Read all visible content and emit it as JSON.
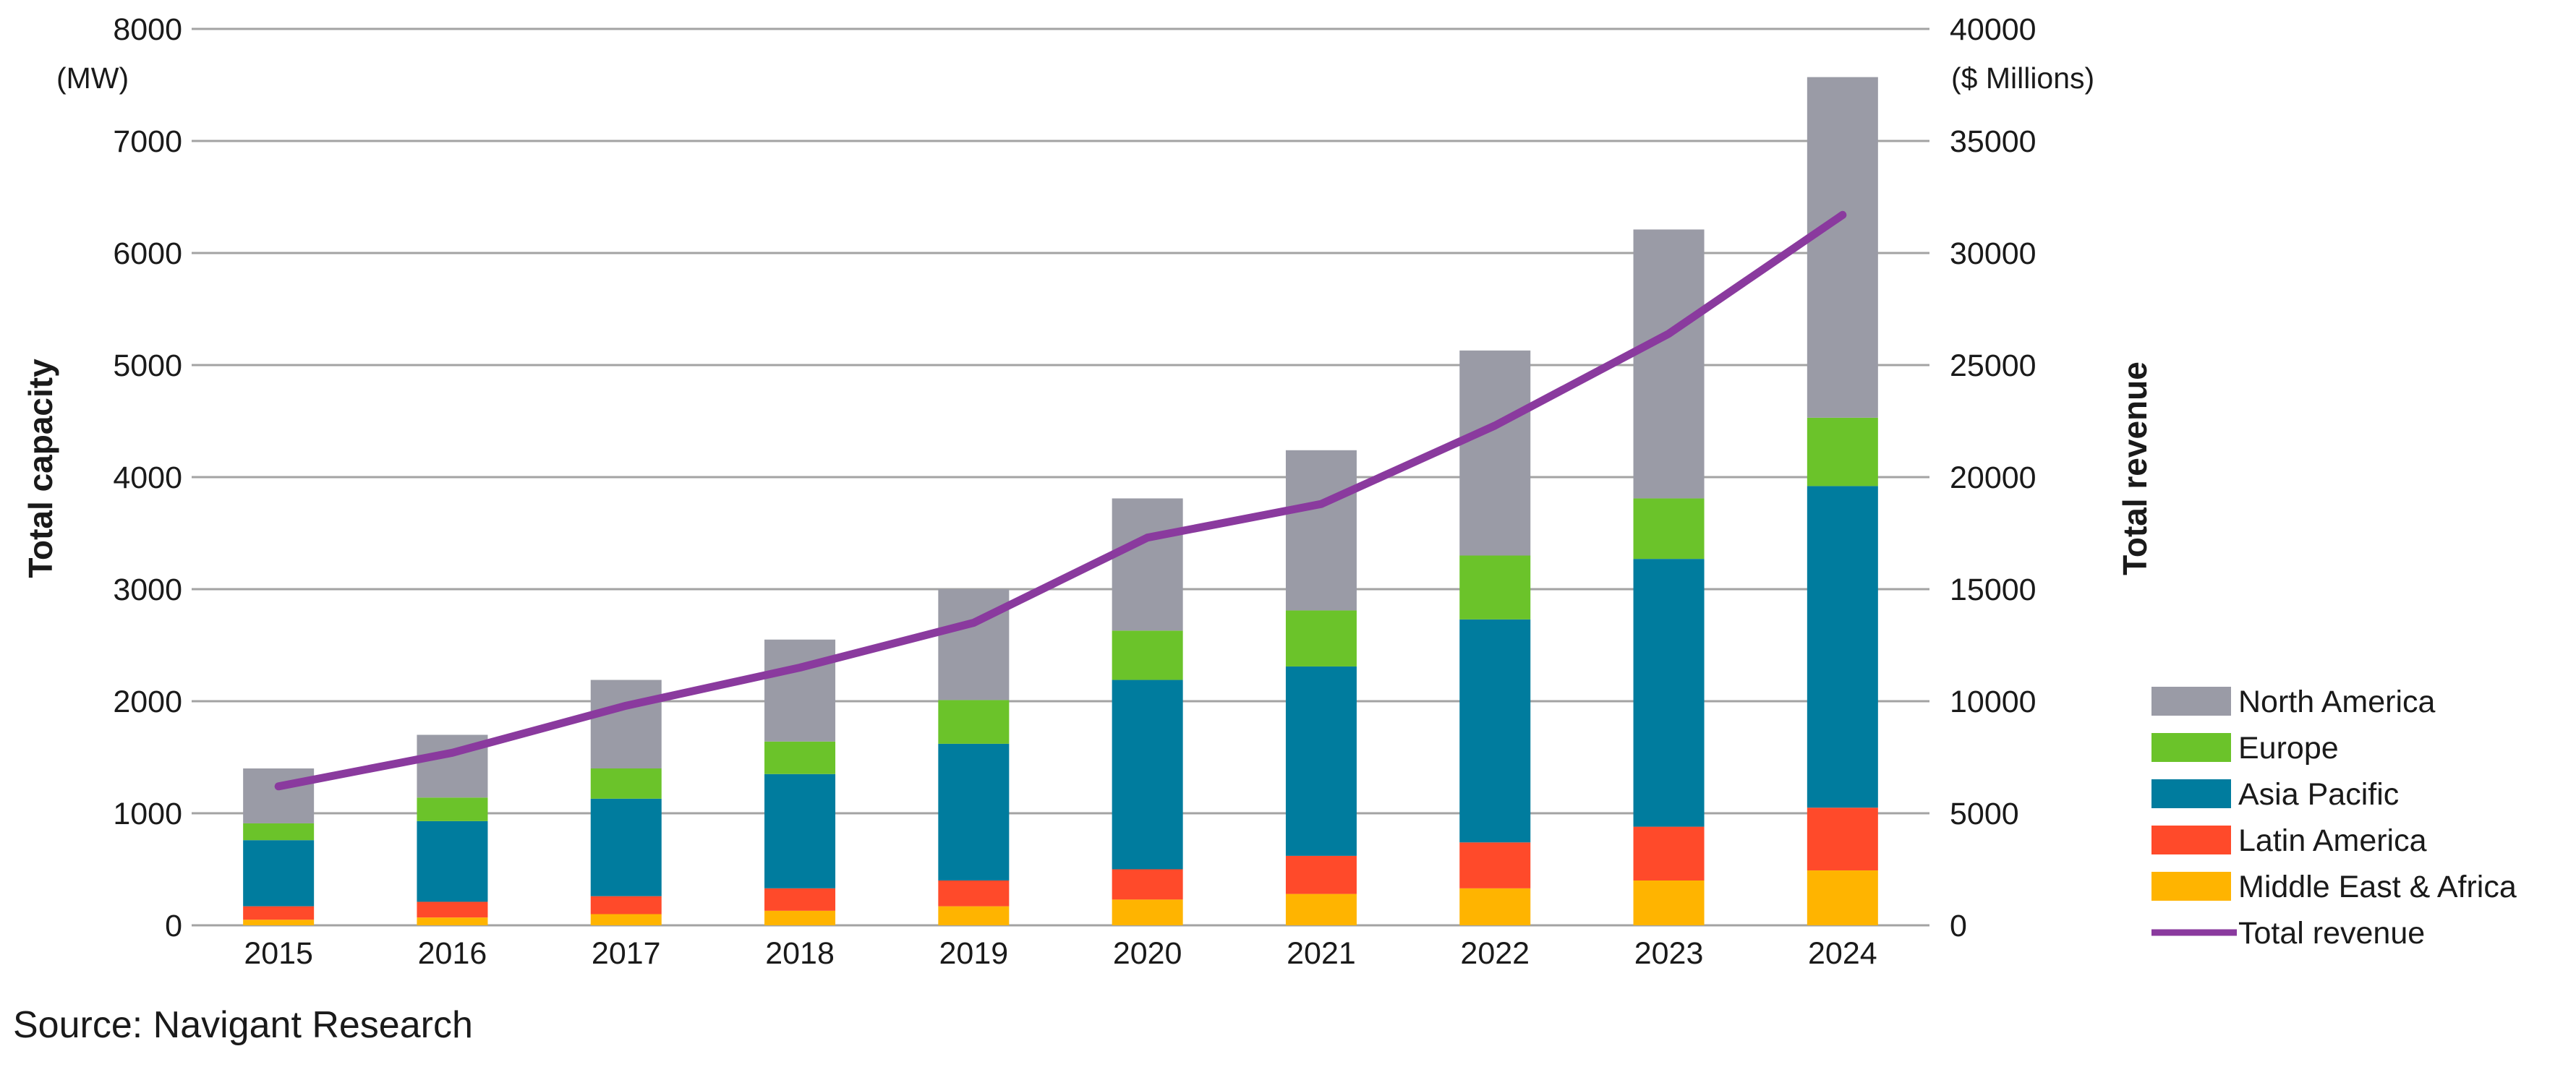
{
  "chart_data": {
    "type": "bar",
    "stacked": true,
    "categories": [
      "2015",
      "2016",
      "2017",
      "2018",
      "2019",
      "2020",
      "2021",
      "2022",
      "2023",
      "2024"
    ],
    "series": [
      {
        "name": "Middle East & Africa",
        "color": "#ffb400",
        "values": [
          50,
          70,
          100,
          130,
          170,
          230,
          280,
          330,
          400,
          490
        ]
      },
      {
        "name": "Latin America",
        "color": "#ff4a2a",
        "values": [
          120,
          140,
          160,
          200,
          230,
          270,
          340,
          410,
          480,
          560
        ]
      },
      {
        "name": "Asia Pacific",
        "color": "#007c9e",
        "values": [
          590,
          720,
          870,
          1020,
          1220,
          1690,
          1690,
          1990,
          2390,
          2870
        ]
      },
      {
        "name": "Europe",
        "color": "#6bc32a",
        "values": [
          150,
          210,
          270,
          290,
          390,
          440,
          500,
          570,
          540,
          610
        ]
      },
      {
        "name": "North America",
        "color": "#9a9ba6",
        "values": [
          490,
          560,
          790,
          910,
          990,
          1180,
          1430,
          1830,
          2400,
          3040
        ]
      }
    ],
    "line_series": {
      "name": "Total revenue",
      "color": "#8a3a9e",
      "values": [
        6200,
        7700,
        9800,
        11500,
        13500,
        17300,
        18800,
        22300,
        26400,
        31700
      ]
    },
    "y_left": {
      "label": "Total capacity",
      "unit": "(MW)",
      "min": 0,
      "max": 8000,
      "ticks": [
        "0",
        "1000",
        "2000",
        "3000",
        "4000",
        "5000",
        "6000",
        "7000",
        "8000"
      ]
    },
    "y_right": {
      "label": "Total revenue",
      "unit": "($ Millions)",
      "min": 0,
      "max": 40000,
      "ticks": [
        "0",
        "5000",
        "10000",
        "15000",
        "20000",
        "25000",
        "30000",
        "35000",
        "40000"
      ]
    },
    "legend_position": "bottom-right",
    "legend_order": [
      "North America",
      "Europe",
      "Asia Pacific",
      "Latin America",
      "Middle East & Africa",
      "Total revenue"
    ],
    "grid": true,
    "source": "Source: Navigant Research"
  }
}
